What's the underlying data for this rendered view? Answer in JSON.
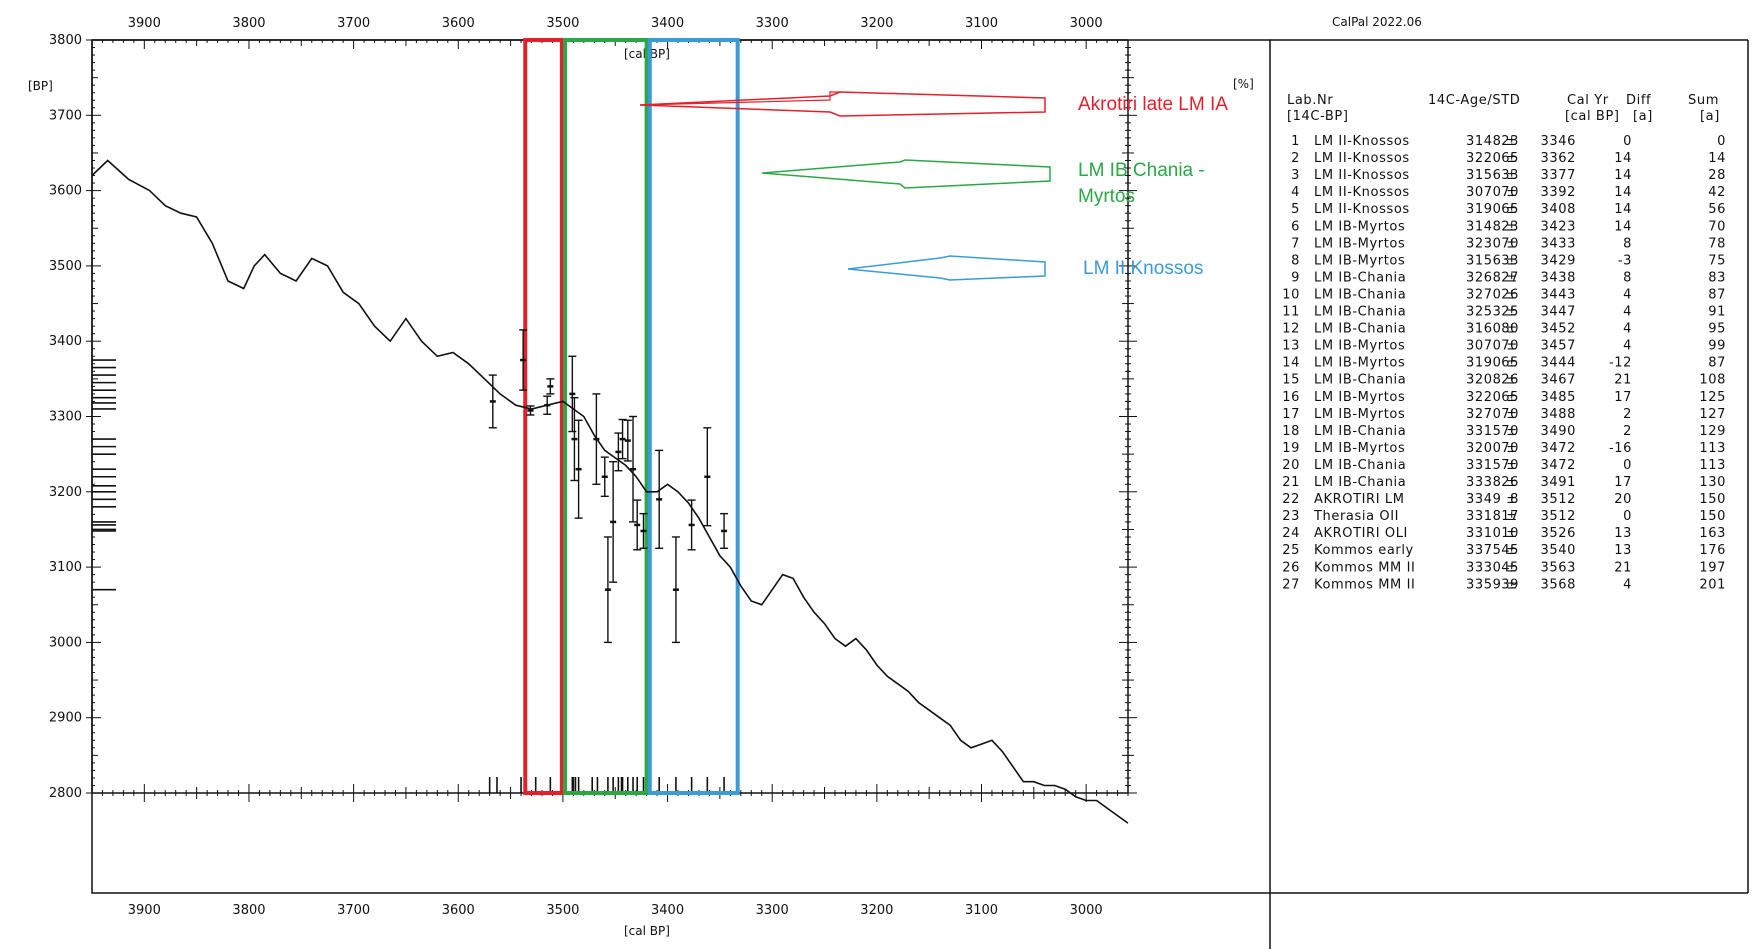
{
  "software_label": "CalPal 2022.06",
  "y_unit_label": "[BP]",
  "x_unit_label": "[cal BP]",
  "percent_label": "[%]",
  "colors": {
    "red": "#e3202c",
    "green": "#2aa844",
    "blue": "#3a9bd8",
    "ink": "#111111"
  },
  "chart_data": {
    "type": "line",
    "xlim": [
      3950,
      2960
    ],
    "ylim": [
      2800,
      3800
    ],
    "x_ticks": [
      3900,
      3800,
      3700,
      3600,
      3500,
      3400,
      3300,
      3200,
      3100,
      3000
    ],
    "y_ticks": [
      2800,
      2900,
      3000,
      3100,
      3200,
      3300,
      3400,
      3500,
      3600,
      3700,
      3800
    ],
    "grid": false,
    "calibration_curve": {
      "x": [
        3950,
        3935,
        3915,
        3895,
        3880,
        3865,
        3850,
        3835,
        3820,
        3805,
        3795,
        3785,
        3770,
        3755,
        3740,
        3725,
        3710,
        3695,
        3680,
        3665,
        3650,
        3635,
        3620,
        3605,
        3590,
        3575,
        3560,
        3545,
        3530,
        3515,
        3500,
        3490,
        3480,
        3470,
        3460,
        3450,
        3440,
        3430,
        3420,
        3410,
        3400,
        3390,
        3380,
        3370,
        3360,
        3350,
        3340,
        3330,
        3320,
        3310,
        3300,
        3290,
        3280,
        3270,
        3260,
        3250,
        3240,
        3230,
        3220,
        3210,
        3200,
        3190,
        3180,
        3170,
        3160,
        3150,
        3140,
        3130,
        3120,
        3110,
        3100,
        3090,
        3080,
        3070,
        3060,
        3050,
        3040,
        3030,
        3020,
        3010,
        3000,
        2990,
        2980,
        2970,
        2960
      ],
      "y": [
        3620,
        3640,
        3615,
        3600,
        3580,
        3570,
        3565,
        3530,
        3480,
        3470,
        3500,
        3515,
        3490,
        3480,
        3510,
        3500,
        3465,
        3450,
        3420,
        3400,
        3430,
        3400,
        3380,
        3385,
        3370,
        3350,
        3330,
        3315,
        3310,
        3315,
        3320,
        3310,
        3300,
        3275,
        3255,
        3245,
        3235,
        3220,
        3200,
        3200,
        3210,
        3200,
        3185,
        3165,
        3140,
        3115,
        3100,
        3075,
        3055,
        3050,
        3070,
        3090,
        3085,
        3060,
        3040,
        3025,
        3005,
        2995,
        3005,
        2990,
        2970,
        2955,
        2945,
        2935,
        2920,
        2910,
        2900,
        2890,
        2870,
        2860,
        2865,
        2870,
        2855,
        2835,
        2815,
        2815,
        2810,
        2810,
        2805,
        2795,
        2790,
        2790,
        2780,
        2770,
        2760
      ]
    },
    "measurements": [
      {
        "x": 3567,
        "y": 3320,
        "err": 35
      },
      {
        "x": 3538,
        "y": 3375,
        "err": 40
      },
      {
        "x": 3531,
        "y": 3308,
        "err": 6
      },
      {
        "x": 3515,
        "y": 3315,
        "err": 12
      },
      {
        "x": 3512,
        "y": 3340,
        "err": 10
      },
      {
        "x": 3491,
        "y": 3330,
        "err": 50
      },
      {
        "x": 3489,
        "y": 3270,
        "err": 55
      },
      {
        "x": 3485,
        "y": 3230,
        "err": 65
      },
      {
        "x": 3468,
        "y": 3270,
        "err": 60
      },
      {
        "x": 3460,
        "y": 3220,
        "err": 26
      },
      {
        "x": 3457,
        "y": 3070,
        "err": 70
      },
      {
        "x": 3452,
        "y": 3160,
        "err": 80
      },
      {
        "x": 3447,
        "y": 3253,
        "err": 25
      },
      {
        "x": 3443,
        "y": 3270,
        "err": 26
      },
      {
        "x": 3438,
        "y": 3268,
        "err": 27
      },
      {
        "x": 3433,
        "y": 3230,
        "err": 70
      },
      {
        "x": 3429,
        "y": 3156,
        "err": 33
      },
      {
        "x": 3423,
        "y": 3148,
        "err": 23
      },
      {
        "x": 3408,
        "y": 3190,
        "err": 65
      },
      {
        "x": 3392,
        "y": 3070,
        "err": 70
      },
      {
        "x": 3377,
        "y": 3156,
        "err": 33
      },
      {
        "x": 3362,
        "y": 3220,
        "err": 65
      },
      {
        "x": 3346,
        "y": 3148,
        "err": 23
      }
    ],
    "left_ticks_bp": [
      3375,
      3365,
      3355,
      3345,
      3335,
      3325,
      3318,
      3310,
      3270,
      3260,
      3250,
      3230,
      3220,
      3208,
      3200,
      3190,
      3180,
      3160,
      3156,
      3150,
      3148,
      3070
    ],
    "bottom_ticks_calbp": [
      3570,
      3563,
      3540,
      3526,
      3512,
      3491,
      3490,
      3488,
      3485,
      3472,
      3467,
      3457,
      3452,
      3447,
      3444,
      3443,
      3438,
      3433,
      3429,
      3423,
      3408,
      3392,
      3377,
      3362,
      3346
    ]
  },
  "periods": [
    {
      "label": "Akrotiri late LM IA",
      "color": "red",
      "x_start": 3536,
      "x_end": 3501
    },
    {
      "label_lines": [
        "LM IB Chania -",
        "Myrtos"
      ],
      "color": "green",
      "x_start": 3498,
      "x_end": 3420
    },
    {
      "label": "LM II Knossos",
      "color": "blue",
      "x_start": 3417,
      "x_end": 3333
    }
  ],
  "table": {
    "headers": {
      "lab_nr": "Lab.Nr",
      "lab_nr_sub": "[14C-BP]",
      "age_std": "14C-Age/STD",
      "calyr": "Cal Yr",
      "calyr_sub": "[cal BP]",
      "diff": "Diff",
      "diff_sub": "[a]",
      "sum": "Sum",
      "sum_sub": "[a]"
    },
    "rows": [
      [
        "1",
        "LM II-Knossos",
        "3148 ±",
        "23",
        "3346",
        "0",
        "0"
      ],
      [
        "2",
        "LM II-Knossos",
        "3220 ±",
        "65",
        "3362",
        "14",
        "14"
      ],
      [
        "3",
        "LM II-Knossos",
        "3156 ±",
        "33",
        "3377",
        "14",
        "28"
      ],
      [
        "4",
        "LM II-Knossos",
        "3070 ±",
        "70",
        "3392",
        "14",
        "42"
      ],
      [
        "5",
        "LM II-Knossos",
        "3190 ±",
        "65",
        "3408",
        "14",
        "56"
      ],
      [
        "6",
        "LM IB-Myrtos",
        "3148 ±",
        "23",
        "3423",
        "14",
        "70"
      ],
      [
        "7",
        "LM IB-Myrtos",
        "3230 ±",
        "70",
        "3433",
        "8",
        "78"
      ],
      [
        "8",
        "LM IB-Myrtos",
        "3156 ±",
        "33",
        "3429",
        "-3",
        "75"
      ],
      [
        "9",
        "LM IB-Chania",
        "3268 ±",
        "27",
        "3438",
        "8",
        "83"
      ],
      [
        "10",
        "LM IB-Chania",
        "3270 ±",
        "26",
        "3443",
        "4",
        "87"
      ],
      [
        "11",
        "LM IB-Chania",
        "3253 ±",
        "25",
        "3447",
        "4",
        "91"
      ],
      [
        "12",
        "LM IB-Chania",
        "3160 ±",
        "80",
        "3452",
        "4",
        "95"
      ],
      [
        "13",
        "LM IB-Myrtos",
        "3070 ±",
        "70",
        "3457",
        "4",
        "99"
      ],
      [
        "14",
        "LM IB-Myrtos",
        "3190 ±",
        "65",
        "3444",
        "-12",
        "87"
      ],
      [
        "15",
        "LM IB-Chania",
        "3208 ±",
        "26",
        "3467",
        "21",
        "108"
      ],
      [
        "16",
        "LM IB-Myrtos",
        "3220 ±",
        "65",
        "3485",
        "17",
        "125"
      ],
      [
        "17",
        "LM IB-Myrtos",
        "3270 ±",
        "70",
        "3488",
        "2",
        "127"
      ],
      [
        "18",
        "LM IB-Chania",
        "3315 ±",
        "70",
        "3490",
        "2",
        "129"
      ],
      [
        "19",
        "LM IB-Myrtos",
        "3200 ±",
        "70",
        "3472",
        "-16",
        "113"
      ],
      [
        "20",
        "LM IB-Chania",
        "3315 ±",
        "70",
        "3472",
        "0",
        "113"
      ],
      [
        "21",
        "LM IB-Chania",
        "3338 ±",
        "26",
        "3491",
        "17",
        "130"
      ],
      [
        "22",
        "AKROTIRI LM",
        "3349 ±",
        "8",
        "3512",
        "20",
        "150"
      ],
      [
        "23",
        "Therasia OII",
        "3318 ±",
        "17",
        "3512",
        "0",
        "150"
      ],
      [
        "24",
        "AKROTIRI OLI",
        "3310 ±",
        "10",
        "3526",
        "13",
        "163"
      ],
      [
        "25",
        "Kommos early",
        "3375 ±",
        "45",
        "3540",
        "13",
        "176"
      ],
      [
        "26",
        "Kommos MM II",
        "3330 ±",
        "45",
        "3563",
        "21",
        "197"
      ],
      [
        "27",
        "Kommos MM II",
        "3359 ±",
        "39",
        "3568",
        "4",
        "201"
      ]
    ]
  }
}
